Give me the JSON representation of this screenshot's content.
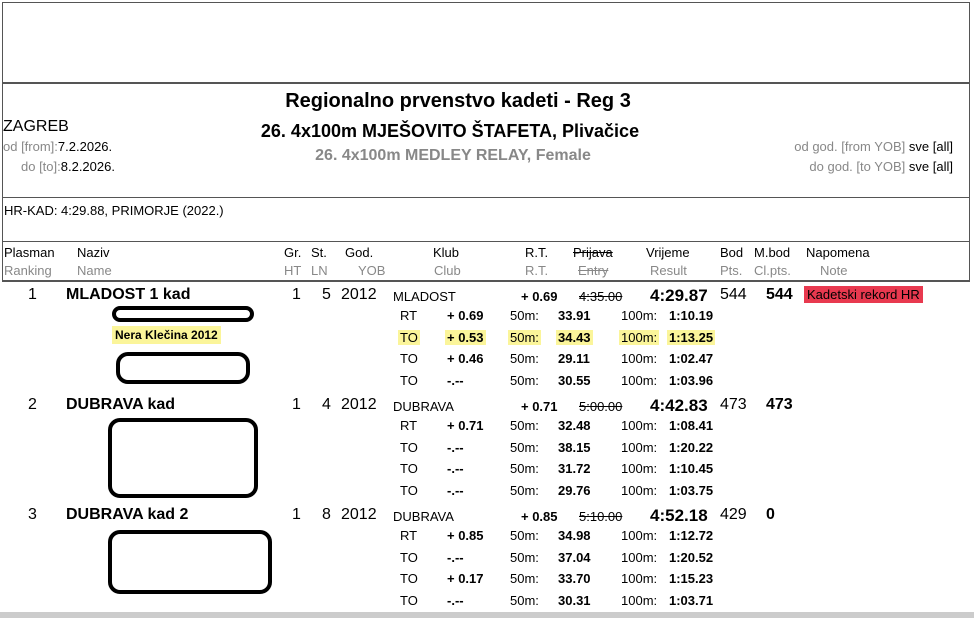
{
  "header": {
    "title": "Regionalno prvenstvo kadeti - Reg 3",
    "event_hr": "26. 4x100m MJEŠOVITO ŠTAFETA, Plivačice",
    "event_en": "26. 4x100m MEDLEY RELAY, Female",
    "city": "ZAGREB",
    "from_label": "od [from]:",
    "from_date": "7.2.2026.",
    "to_label": "do [to]:",
    "to_date": "8.2.2026.",
    "yob_from_label": "od god. [from YOB]",
    "yob_from": "sve [all]",
    "yob_to_label": "do god. [to YOB]",
    "yob_to": "sve [all]"
  },
  "record": "HR-KAD: 4:29.88, PRIMORJE (2022.)",
  "columns": [
    {
      "hr": "Plasman",
      "en": "Ranking"
    },
    {
      "hr": "Naziv",
      "en": "Name"
    },
    {
      "hr": "Gr.",
      "en": "HT"
    },
    {
      "hr": "St.",
      "en": "LN"
    },
    {
      "hr": "God.",
      "en": "YOB"
    },
    {
      "hr": "Klub",
      "en": "Club"
    },
    {
      "hr": "R.T.",
      "en": "R.T."
    },
    {
      "hr": "Prijava",
      "en": "Entry"
    },
    {
      "hr": "Vrijeme",
      "en": "Result"
    },
    {
      "hr": "Bod",
      "en": "Pts."
    },
    {
      "hr": "M.bod",
      "en": "Cl.pts."
    },
    {
      "hr": "Napomena",
      "en": "Note"
    }
  ],
  "results": [
    {
      "rank": "1",
      "name": "MLADOST 1 kad",
      "heat": "1",
      "lane": "5",
      "yob": "2012",
      "club": "MLADOST",
      "rt": "+ 0.69",
      "entry": "4:35.00",
      "result": "4:29.87",
      "pts": "544",
      "clpts": "544",
      "note": "Kadetski rekord HR",
      "visible_swimmer": "Nera Klečina 2012",
      "legs": [
        {
          "type": "RT",
          "rt": "+ 0.69",
          "l50": "50m:",
          "s50": "33.91",
          "l100": "100m:",
          "s100": "1:10.19"
        },
        {
          "type": "TO",
          "rt": "+ 0.53",
          "l50": "50m:",
          "s50": "34.43",
          "l100": "100m:",
          "s100": "1:13.25",
          "highlight": true
        },
        {
          "type": "TO",
          "rt": "+ 0.46",
          "l50": "50m:",
          "s50": "29.11",
          "l100": "100m:",
          "s100": "1:02.47"
        },
        {
          "type": "TO",
          "rt": "-.--",
          "l50": "50m:",
          "s50": "30.55",
          "l100": "100m:",
          "s100": "1:03.96"
        }
      ]
    },
    {
      "rank": "2",
      "name": "DUBRAVA kad",
      "heat": "1",
      "lane": "4",
      "yob": "2012",
      "club": "DUBRAVA",
      "rt": "+ 0.71",
      "entry": "5:00.00",
      "result": "4:42.83",
      "pts": "473",
      "clpts": "473",
      "note": "",
      "legs": [
        {
          "type": "RT",
          "rt": "+ 0.71",
          "l50": "50m:",
          "s50": "32.48",
          "l100": "100m:",
          "s100": "1:08.41"
        },
        {
          "type": "TO",
          "rt": "-.--",
          "l50": "50m:",
          "s50": "38.15",
          "l100": "100m:",
          "s100": "1:20.22"
        },
        {
          "type": "TO",
          "rt": "-.--",
          "l50": "50m:",
          "s50": "31.72",
          "l100": "100m:",
          "s100": "1:10.45"
        },
        {
          "type": "TO",
          "rt": "-.--",
          "l50": "50m:",
          "s50": "29.76",
          "l100": "100m:",
          "s100": "1:03.75"
        }
      ]
    },
    {
      "rank": "3",
      "name": "DUBRAVA kad 2",
      "heat": "1",
      "lane": "8",
      "yob": "2012",
      "club": "DUBRAVA",
      "rt": "+ 0.85",
      "entry": "5:10.00",
      "result": "4:52.18",
      "pts": "429",
      "clpts": "0",
      "note": "",
      "legs": [
        {
          "type": "RT",
          "rt": "+ 0.85",
          "l50": "50m:",
          "s50": "34.98",
          "l100": "100m:",
          "s100": "1:12.72"
        },
        {
          "type": "TO",
          "rt": "-.--",
          "l50": "50m:",
          "s50": "37.04",
          "l100": "100m:",
          "s100": "1:20.52"
        },
        {
          "type": "TO",
          "rt": "+ 0.17",
          "l50": "50m:",
          "s50": "33.70",
          "l100": "100m:",
          "s100": "1:15.23"
        },
        {
          "type": "TO",
          "rt": "-.--",
          "l50": "50m:",
          "s50": "30.31",
          "l100": "100m:",
          "s100": "1:03.71"
        }
      ]
    }
  ]
}
